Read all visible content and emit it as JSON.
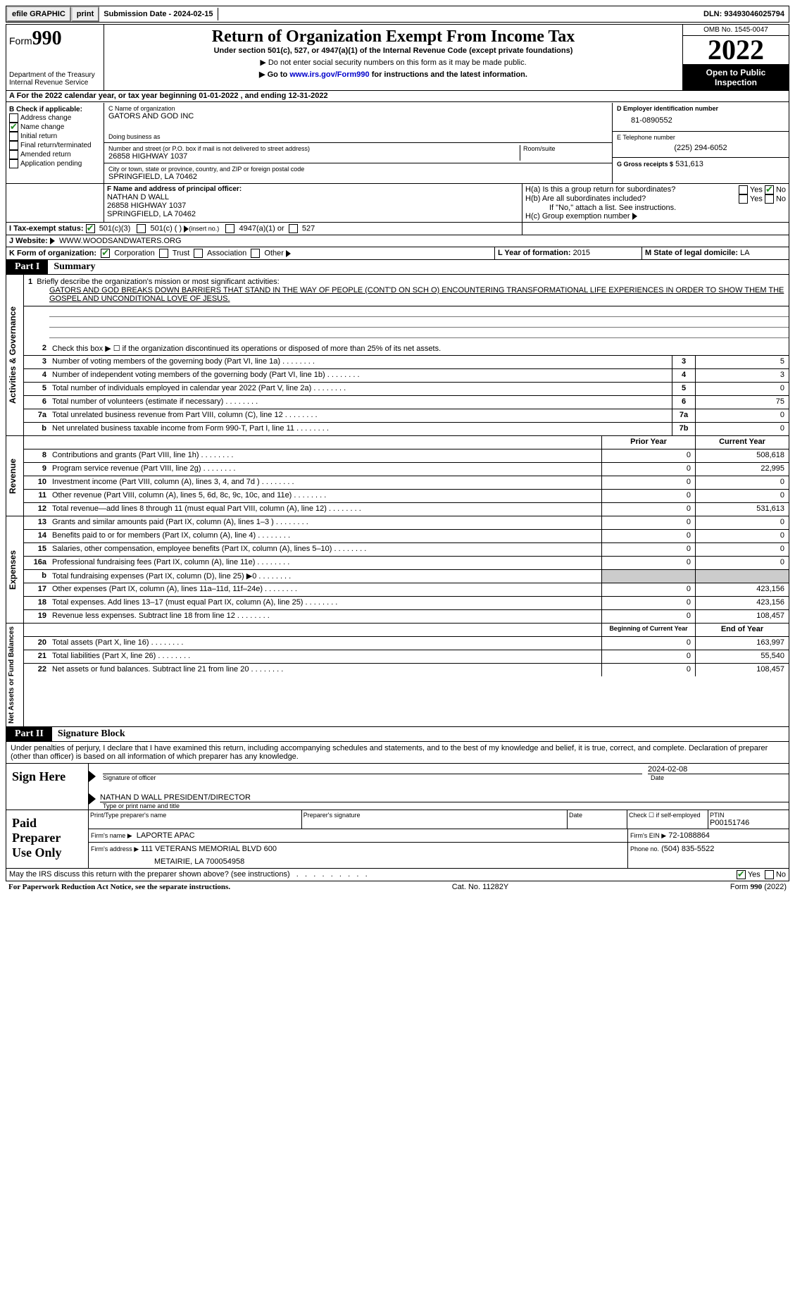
{
  "topbar": {
    "efile": "efile GRAPHIC",
    "print": "print",
    "sub_date_label": "Submission Date - 2024-02-15",
    "dln": "DLN: 93493046025794"
  },
  "header": {
    "form_word": "Form",
    "form_num": "990",
    "dept": "Department of the Treasury",
    "irs": "Internal Revenue Service",
    "title": "Return of Organization Exempt From Income Tax",
    "sub1": "Under section 501(c), 527, or 4947(a)(1) of the Internal Revenue Code (except private foundations)",
    "sub2": "Do not enter social security numbers on this form as it may be made public.",
    "sub3_pre": "Go to ",
    "sub3_link": "www.irs.gov/Form990",
    "sub3_post": " for instructions and the latest information.",
    "omb": "OMB No. 1545-0047",
    "year": "2022",
    "open": "Open to Public Inspection"
  },
  "row_a": "A For the 2022 calendar year, or tax year beginning 01-01-2022    , and ending 12-31-2022",
  "col_b": {
    "label": "B Check if applicable:",
    "opts": [
      "Address change",
      "Name change",
      "Initial return",
      "Final return/terminated",
      "Amended return",
      "Application pending"
    ],
    "checked_idx": 1
  },
  "col_c": {
    "name_label": "C Name of organization",
    "name": "GATORS AND GOD INC",
    "dba_label": "Doing business as",
    "addr_label": "Number and street (or P.O. box if mail is not delivered to street address)",
    "room_label": "Room/suite",
    "addr": "26858 HIGHWAY 1037",
    "city_label": "City or town, state or province, country, and ZIP or foreign postal code",
    "city": "SPRINGFIELD, LA  70462",
    "f_label": "F Name and address of principal officer:",
    "f_name": "NATHAN D WALL",
    "f_addr1": "26858 HIGHWAY 1037",
    "f_addr2": "SPRINGFIELD, LA  70462"
  },
  "col_d": {
    "ein_label": "D Employer identification number",
    "ein": "81-0890552",
    "phone_label": "E Telephone number",
    "phone": "(225) 294-6052",
    "gross_label": "G Gross receipts $",
    "gross": "531,613"
  },
  "h": {
    "ha": "H(a)  Is this a group return for subordinates?",
    "hb": "H(b)  Are all subordinates included?",
    "hb_note": "If \"No,\" attach a list. See instructions.",
    "hc": "H(c)  Group exemption number",
    "yes": "Yes",
    "no": "No"
  },
  "row_i": {
    "label": "I   Tax-exempt status:",
    "o1": "501(c)(3)",
    "o2": "501(c) (  )",
    "o2_note": "(insert no.)",
    "o3": "4947(a)(1) or",
    "o4": "527"
  },
  "row_j": {
    "label": "J   Website:",
    "val": "WWW.WOODSANDWATERS.ORG"
  },
  "row_k": {
    "label": "K Form of organization:",
    "o1": "Corporation",
    "o2": "Trust",
    "o3": "Association",
    "o4": "Other",
    "l_label": "L Year of formation:",
    "l_val": "2015",
    "m_label": "M State of legal domicile:",
    "m_val": "LA"
  },
  "parts": {
    "p1": "Part I",
    "p1_title": "Summary",
    "p2": "Part II",
    "p2_title": "Signature Block"
  },
  "tabs": {
    "t1": "Activities & Governance",
    "t2": "Revenue",
    "t3": "Expenses",
    "t4": "Net Assets or Fund Balances"
  },
  "mission": {
    "label": "1  Briefly describe the organization's mission or most significant activities:",
    "text": "GATORS AND GOD BREAKS DOWN BARRIERS THAT STAND IN THE WAY OF PEOPLE (CONT'D ON SCH O) ENCOUNTERING TRANSFORMATIONAL LIFE EXPERIENCES IN ORDER TO SHOW THEM THE GOSPEL AND UNCONDITIONAL LOVE OF JESUS."
  },
  "lines_gov": [
    {
      "n": "2",
      "label": "Check this box ▶ ☐ if the organization discontinued its operations or disposed of more than 25% of its net assets.",
      "box": "",
      "v": ""
    },
    {
      "n": "3",
      "label": "Number of voting members of the governing body (Part VI, line 1a)",
      "box": "3",
      "v": "5"
    },
    {
      "n": "4",
      "label": "Number of independent voting members of the governing body (Part VI, line 1b)",
      "box": "4",
      "v": "3"
    },
    {
      "n": "5",
      "label": "Total number of individuals employed in calendar year 2022 (Part V, line 2a)",
      "box": "5",
      "v": "0"
    },
    {
      "n": "6",
      "label": "Total number of volunteers (estimate if necessary)",
      "box": "6",
      "v": "75"
    },
    {
      "n": "7a",
      "label": "Total unrelated business revenue from Part VIII, column (C), line 12",
      "box": "7a",
      "v": "0"
    },
    {
      "n": "b",
      "label": "Net unrelated business taxable income from Form 990-T, Part I, line 11",
      "box": "7b",
      "v": "0"
    }
  ],
  "col_headers": {
    "prior": "Prior Year",
    "current": "Current Year"
  },
  "lines_rev": [
    {
      "n": "8",
      "label": "Contributions and grants (Part VIII, line 1h)",
      "p": "0",
      "c": "508,618"
    },
    {
      "n": "9",
      "label": "Program service revenue (Part VIII, line 2g)",
      "p": "0",
      "c": "22,995"
    },
    {
      "n": "10",
      "label": "Investment income (Part VIII, column (A), lines 3, 4, and 7d )",
      "p": "0",
      "c": "0"
    },
    {
      "n": "11",
      "label": "Other revenue (Part VIII, column (A), lines 5, 6d, 8c, 9c, 10c, and 11e)",
      "p": "0",
      "c": "0"
    },
    {
      "n": "12",
      "label": "Total revenue—add lines 8 through 11 (must equal Part VIII, column (A), line 12)",
      "p": "0",
      "c": "531,613"
    }
  ],
  "lines_exp": [
    {
      "n": "13",
      "label": "Grants and similar amounts paid (Part IX, column (A), lines 1–3 )",
      "p": "0",
      "c": "0"
    },
    {
      "n": "14",
      "label": "Benefits paid to or for members (Part IX, column (A), line 4)",
      "p": "0",
      "c": "0"
    },
    {
      "n": "15",
      "label": "Salaries, other compensation, employee benefits (Part IX, column (A), lines 5–10)",
      "p": "0",
      "c": "0"
    },
    {
      "n": "16a",
      "label": "Professional fundraising fees (Part IX, column (A), line 11e)",
      "p": "0",
      "c": "0"
    },
    {
      "n": "b",
      "label": "Total fundraising expenses (Part IX, column (D), line 25) ▶0",
      "p": "shade",
      "c": "shade"
    },
    {
      "n": "17",
      "label": "Other expenses (Part IX, column (A), lines 11a–11d, 11f–24e)",
      "p": "0",
      "c": "423,156"
    },
    {
      "n": "18",
      "label": "Total expenses. Add lines 13–17 (must equal Part IX, column (A), line 25)",
      "p": "0",
      "c": "423,156"
    },
    {
      "n": "19",
      "label": "Revenue less expenses. Subtract line 18 from line 12",
      "p": "0",
      "c": "108,457"
    }
  ],
  "col_headers2": {
    "begin": "Beginning of Current Year",
    "end": "End of Year"
  },
  "lines_net": [
    {
      "n": "20",
      "label": "Total assets (Part X, line 16)",
      "p": "0",
      "c": "163,997"
    },
    {
      "n": "21",
      "label": "Total liabilities (Part X, line 26)",
      "p": "0",
      "c": "55,540"
    },
    {
      "n": "22",
      "label": "Net assets or fund balances. Subtract line 21 from line 20",
      "p": "0",
      "c": "108,457"
    }
  ],
  "sig": {
    "decl": "Under penalties of perjury, I declare that I have examined this return, including accompanying schedules and statements, and to the best of my knowledge and belief, it is true, correct, and complete. Declaration of preparer (other than officer) is based on all information of which preparer has any knowledge.",
    "sign_here": "Sign Here",
    "sig_label": "Signature of officer",
    "date_label": "Date",
    "date": "2024-02-08",
    "name": "NATHAN D WALL  PRESIDENT/DIRECTOR",
    "name_label": "Type or print name and title",
    "paid": "Paid Preparer Use Only",
    "pp_name_label": "Print/Type preparer's name",
    "pp_sig_label": "Preparer's signature",
    "pp_date_label": "Date",
    "pp_check": "Check ☐ if self-employed",
    "ptin_label": "PTIN",
    "ptin": "P00151746",
    "firm_name_label": "Firm's name   ▶",
    "firm_name": "LAPORTE APAC",
    "firm_ein_label": "Firm's EIN ▶",
    "firm_ein": "72-1088864",
    "firm_addr_label": "Firm's address ▶",
    "firm_addr1": "111 VETERANS MEMORIAL BLVD 600",
    "firm_addr2": "METAIRIE, LA  700054958",
    "firm_phone_label": "Phone no.",
    "firm_phone": "(504) 835-5522"
  },
  "footer": {
    "discuss": "May the IRS discuss this return with the preparer shown above? (see instructions)",
    "yes": "Yes",
    "no": "No",
    "paperwork": "For Paperwork Reduction Act Notice, see the separate instructions.",
    "cat": "Cat. No. 11282Y",
    "form": "Form 990 (2022)"
  }
}
